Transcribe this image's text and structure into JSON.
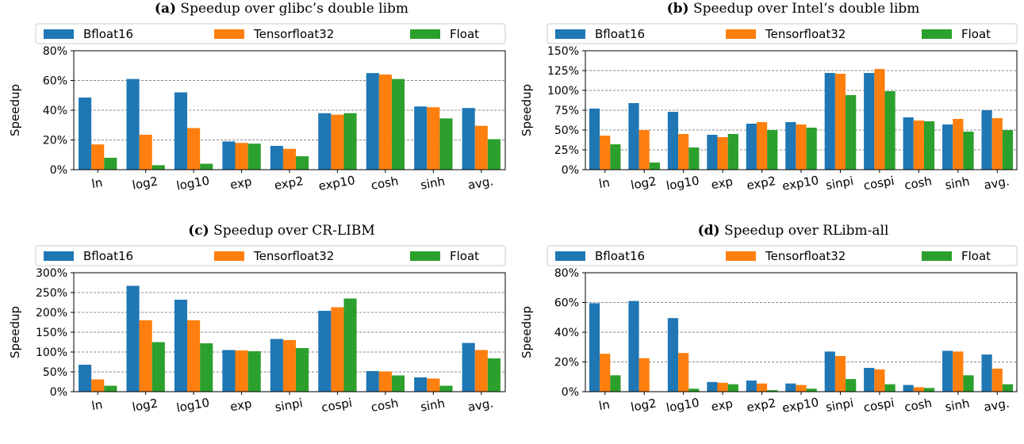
{
  "colors": {
    "Bfloat16": "#1f77b4",
    "Tensorfloat32": "#ff7f0e",
    "Float": "#2ca02c"
  },
  "chart_data": [
    {
      "type": "bar",
      "caption_label": "(a)",
      "title": "Speedup over glibc’s double libm",
      "ylabel": "Speedup",
      "ylim": [
        0,
        80
      ],
      "yticks": [
        "0%",
        "20%",
        "40%",
        "60%",
        "80%"
      ],
      "yticks_values": [
        0,
        20,
        40,
        60,
        80
      ],
      "categories": [
        "ln",
        "log2",
        "log10",
        "exp",
        "exp2",
        "exp10",
        "cosh",
        "sinh",
        "avg."
      ],
      "series": [
        {
          "name": "Bfloat16",
          "values": [
            48.5,
            61,
            52,
            19,
            16,
            38,
            65,
            42.5,
            41.5
          ]
        },
        {
          "name": "Tensorfloat32",
          "values": [
            17,
            23.5,
            28,
            18,
            14,
            37,
            64,
            42,
            29.5
          ]
        },
        {
          "name": "Float",
          "values": [
            8,
            3,
            4,
            17.5,
            9,
            38,
            61,
            34.5,
            20.5
          ]
        }
      ],
      "grid": true,
      "legend": "top"
    },
    {
      "type": "bar",
      "caption_label": "(b)",
      "title": "Speedup over Intel’s double libm",
      "ylabel": "Speedup",
      "ylim": [
        0,
        150
      ],
      "yticks": [
        "0%",
        "25%",
        "50%",
        "75%",
        "100%",
        "125%",
        "150%"
      ],
      "yticks_values": [
        0,
        25,
        50,
        75,
        100,
        125,
        150
      ],
      "categories": [
        "ln",
        "log2",
        "log10",
        "exp",
        "exp2",
        "exp10",
        "sinpi",
        "cospi",
        "cosh",
        "sinh",
        "avg."
      ],
      "series": [
        {
          "name": "Bfloat16",
          "values": [
            77,
            84,
            73,
            44,
            58,
            60,
            122,
            122,
            66,
            57,
            75
          ]
        },
        {
          "name": "Tensorfloat32",
          "values": [
            43,
            50,
            45,
            41,
            60,
            57,
            121,
            127,
            62,
            64,
            65
          ]
        },
        {
          "name": "Float",
          "values": [
            32,
            9,
            28,
            45,
            50,
            53,
            94,
            99,
            61,
            48,
            50
          ]
        }
      ],
      "grid": true,
      "legend": "top"
    },
    {
      "type": "bar",
      "caption_label": "(c)",
      "title": "Speedup over CR-LIBM",
      "ylabel": "Speedup",
      "ylim": [
        0,
        300
      ],
      "yticks": [
        "0%",
        "50%",
        "100%",
        "150%",
        "200%",
        "250%",
        "300%"
      ],
      "yticks_values": [
        0,
        50,
        100,
        150,
        200,
        250,
        300
      ],
      "categories": [
        "ln",
        "log2",
        "log10",
        "exp",
        "sinpi",
        "cospi",
        "cosh",
        "sinh",
        "avg."
      ],
      "series": [
        {
          "name": "Bfloat16",
          "values": [
            68,
            267,
            232,
            105,
            133,
            204,
            52,
            36,
            123
          ]
        },
        {
          "name": "Tensorfloat32",
          "values": [
            31,
            180,
            180,
            104,
            130,
            213,
            51,
            33,
            105
          ]
        },
        {
          "name": "Float",
          "values": [
            15,
            125,
            122,
            102,
            110,
            235,
            41,
            15,
            84
          ]
        }
      ],
      "grid": true,
      "legend": "top"
    },
    {
      "type": "bar",
      "caption_label": "(d)",
      "title": "Speedup over RLibm-all",
      "ylabel": "Speedup",
      "ylim": [
        0,
        80
      ],
      "yticks": [
        "0%",
        "20%",
        "40%",
        "60%",
        "80%"
      ],
      "yticks_values": [
        0,
        20,
        40,
        60,
        80
      ],
      "categories": [
        "ln",
        "log2",
        "log10",
        "exp",
        "exp2",
        "exp10",
        "sinpi",
        "cospi",
        "cosh",
        "sinh",
        "avg."
      ],
      "series": [
        {
          "name": "Bfloat16",
          "values": [
            59.5,
            61,
            49.5,
            6.5,
            7.5,
            5.5,
            27,
            16,
            4.5,
            27.5,
            25
          ]
        },
        {
          "name": "Tensorfloat32",
          "values": [
            25.5,
            22.5,
            26,
            6,
            5.5,
            4.5,
            24,
            15,
            3,
            27,
            15.5
          ]
        },
        {
          "name": "Float",
          "values": [
            11,
            0,
            2,
            5,
            1,
            2,
            8.5,
            5,
            2.5,
            11,
            5
          ]
        }
      ],
      "grid": true,
      "legend": "top"
    }
  ]
}
